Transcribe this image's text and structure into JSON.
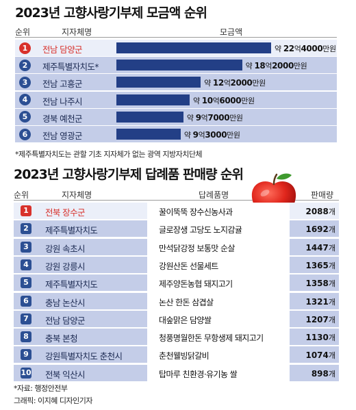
{
  "chart_data": [
    {
      "type": "bar",
      "title": "2023년 고향사랑기부제 모금액 순위",
      "columns": {
        "rank": "순위",
        "region": "지자체명",
        "amount": "모금액"
      },
      "ranks": [
        "1",
        "2",
        "3",
        "4",
        "5",
        "6"
      ],
      "categories": [
        "전남 담양군",
        "제주특별자치도*",
        "전남 고흥군",
        "전남 나주시",
        "경북 예천군",
        "전남 영광군"
      ],
      "values": [
        224000,
        182000,
        122000,
        106000,
        97000,
        93000
      ],
      "unit": "만원",
      "labels": [
        {
          "prefix": "약 ",
          "num1": "22",
          "mid": "억",
          "num2": "4000",
          "suffix": "만원"
        },
        {
          "prefix": "약 ",
          "num1": "18",
          "mid": "억",
          "num2": "2000",
          "suffix": "만원"
        },
        {
          "prefix": "약 ",
          "num1": "12",
          "mid": "억",
          "num2": "2000",
          "suffix": "만원"
        },
        {
          "prefix": "약 ",
          "num1": "10",
          "mid": "억",
          "num2": "6000",
          "suffix": "만원"
        },
        {
          "prefix": "약 ",
          "num1": "9",
          "mid": "억",
          "num2": "7000",
          "suffix": "만원"
        },
        {
          "prefix": "약 ",
          "num1": "9",
          "mid": "억",
          "num2": "3000",
          "suffix": "만원"
        }
      ],
      "footnote": "*제주특별자치도는 관할 기초 지자체가 없는 광역 지방자치단체"
    },
    {
      "type": "table",
      "title": "2023년 고향사랑기부제 답례품 판매량 순위",
      "columns": {
        "rank": "순위",
        "region": "지자체명",
        "product": "답례품명",
        "sales": "판매량"
      },
      "unit": "개",
      "rows": [
        {
          "rank": "1",
          "region": "전북 장수군",
          "product": "꿀이뚝뚝 장수신농사과",
          "sales": "2088"
        },
        {
          "rank": "2",
          "region": "제주특별자치도",
          "product": "글로장생 고당도 노지감귤",
          "sales": "1692"
        },
        {
          "rank": "3",
          "region": "강원 속초시",
          "product": "만석닭강정 보통맛 순살",
          "sales": "1447"
        },
        {
          "rank": "4",
          "region": "강원 강릉시",
          "product": "강원산돈 선물세트",
          "sales": "1365"
        },
        {
          "rank": "5",
          "region": "제주특별자치도",
          "product": "제주양돈농협 돼지고기",
          "sales": "1358"
        },
        {
          "rank": "6",
          "region": "충남 논산시",
          "product": "논산 한돈 삼겹살",
          "sales": "1321"
        },
        {
          "rank": "7",
          "region": "전남 담양군",
          "product": "대숲맑은 담양쌀",
          "sales": "1207"
        },
        {
          "rank": "8",
          "region": "충북 본청",
          "product": "청풍명월한돈 무항생제 돼지고기",
          "sales": "1130"
        },
        {
          "rank": "9",
          "region": "강원특별자치도 춘천시",
          "product": "춘천웰빙닭갈비",
          "sales": "1074"
        },
        {
          "rank": "10",
          "region": "전북 익산시",
          "product": "탑마루 친환경·유기농 쌀",
          "sales": "898"
        }
      ]
    }
  ],
  "source": "*자료: 행정안전부",
  "credit": "그래픽: 이지혜 디자인기자",
  "colors": {
    "accent_red": "#d8312b",
    "navy": "#233f86",
    "row_bg": "#c4cde8",
    "row_bg_first": "#ebeff9"
  },
  "icons": [
    "apple-icon"
  ]
}
